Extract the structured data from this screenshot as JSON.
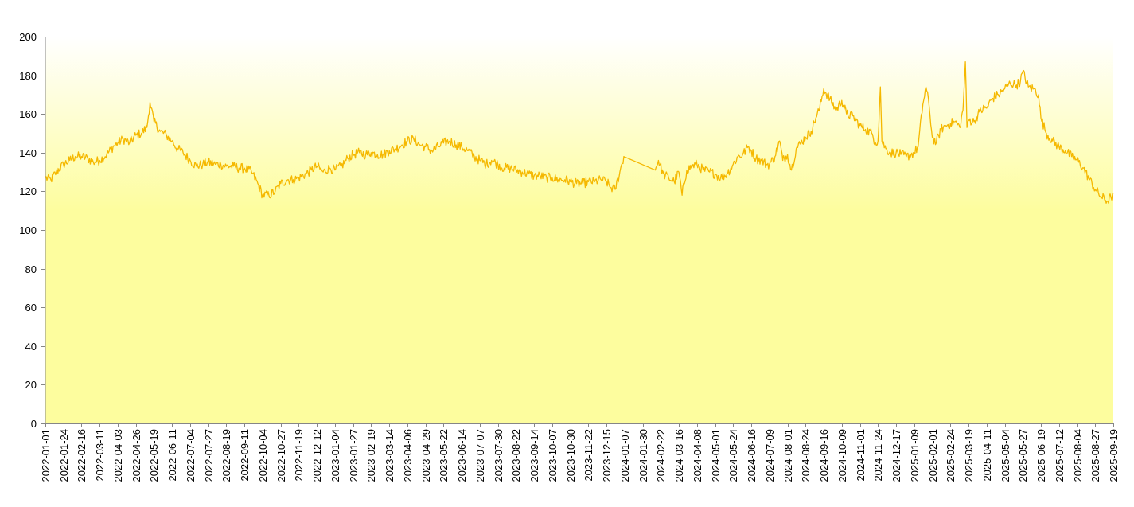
{
  "chart_data": {
    "type": "line",
    "title": "",
    "xlabel": "",
    "ylabel": "",
    "ylim": [
      0,
      200
    ],
    "y_ticks": [
      0,
      20,
      40,
      60,
      80,
      100,
      120,
      140,
      160,
      180,
      200
    ],
    "x_range": [
      "2022-01-01",
      "2025-09-19"
    ],
    "x_tick_labels": [
      "2022-01-01",
      "2022-01-24",
      "2022-02-16",
      "2022-03-11",
      "2022-04-03",
      "2022-04-26",
      "2022-05-19",
      "2022-06-11",
      "2022-07-04",
      "2022-07-27",
      "2022-08-19",
      "2022-09-11",
      "2022-10-04",
      "2022-10-27",
      "2022-11-19",
      "2022-12-12",
      "2023-01-04",
      "2023-01-27",
      "2023-02-19",
      "2023-03-14",
      "2023-04-06",
      "2023-04-29",
      "2023-05-22",
      "2023-06-14",
      "2023-07-07",
      "2023-07-30",
      "2023-08-22",
      "2023-09-14",
      "2023-10-07",
      "2023-10-30",
      "2023-11-22",
      "2023-12-15",
      "2024-01-07",
      "2024-01-30",
      "2024-02-22",
      "2024-03-16",
      "2024-04-08",
      "2024-05-01",
      "2024-05-24",
      "2024-06-16",
      "2024-07-09",
      "2024-08-01",
      "2024-08-24",
      "2024-09-16",
      "2024-10-09",
      "2024-11-01",
      "2024-11-24",
      "2024-12-17",
      "2025-01-09",
      "2025-02-01",
      "2025-02-24",
      "2025-03-19",
      "2025-04-11",
      "2025-05-04",
      "2025-05-27",
      "2025-06-19",
      "2025-07-12",
      "2025-08-04",
      "2025-08-27",
      "2025-09-19"
    ],
    "grid": false,
    "legend": "none",
    "background_gradient": [
      "#ffffff",
      "#fdfd9e"
    ],
    "series": [
      {
        "color": "#f5b800",
        "points": [
          [
            "2022-01-01",
            127
          ],
          [
            "2022-01-08",
            126
          ],
          [
            "2022-01-15",
            130
          ],
          [
            "2022-01-24",
            134
          ],
          [
            "2022-02-01",
            136
          ],
          [
            "2022-02-08",
            138
          ],
          [
            "2022-02-16",
            138
          ],
          [
            "2022-02-24",
            137
          ],
          [
            "2022-03-03",
            135
          ],
          [
            "2022-03-11",
            136
          ],
          [
            "2022-03-20",
            139
          ],
          [
            "2022-03-28",
            143
          ],
          [
            "2022-04-03",
            145
          ],
          [
            "2022-04-10",
            147
          ],
          [
            "2022-04-18",
            145
          ],
          [
            "2022-04-26",
            149
          ],
          [
            "2022-05-03",
            150
          ],
          [
            "2022-05-10",
            153
          ],
          [
            "2022-05-14",
            166
          ],
          [
            "2022-05-19",
            156
          ],
          [
            "2022-05-27",
            151
          ],
          [
            "2022-06-04",
            149
          ],
          [
            "2022-06-11",
            146
          ],
          [
            "2022-06-18",
            142
          ],
          [
            "2022-06-25",
            140
          ],
          [
            "2022-07-04",
            136
          ],
          [
            "2022-07-12",
            133
          ],
          [
            "2022-07-20",
            134
          ],
          [
            "2022-07-27",
            135
          ],
          [
            "2022-08-05",
            134
          ],
          [
            "2022-08-12",
            134
          ],
          [
            "2022-08-19",
            133
          ],
          [
            "2022-08-28",
            133
          ],
          [
            "2022-09-04",
            132
          ],
          [
            "2022-09-11",
            132
          ],
          [
            "2022-09-20",
            130
          ],
          [
            "2022-09-28",
            124
          ],
          [
            "2022-10-04",
            118
          ],
          [
            "2022-10-12",
            118
          ],
          [
            "2022-10-20",
            120
          ],
          [
            "2022-10-27",
            124
          ],
          [
            "2022-11-05",
            126
          ],
          [
            "2022-11-12",
            126
          ],
          [
            "2022-11-19",
            127
          ],
          [
            "2022-11-28",
            129
          ],
          [
            "2022-12-05",
            131
          ],
          [
            "2022-12-12",
            133
          ],
          [
            "2022-12-20",
            130
          ],
          [
            "2022-12-28",
            132
          ],
          [
            "2023-01-04",
            131
          ],
          [
            "2023-01-12",
            133
          ],
          [
            "2023-01-20",
            137
          ],
          [
            "2023-01-27",
            139
          ],
          [
            "2023-02-04",
            140
          ],
          [
            "2023-02-12",
            139
          ],
          [
            "2023-02-19",
            140
          ],
          [
            "2023-02-27",
            139
          ],
          [
            "2023-03-06",
            139
          ],
          [
            "2023-03-14",
            141
          ],
          [
            "2023-03-22",
            142
          ],
          [
            "2023-03-30",
            144
          ],
          [
            "2023-04-06",
            146
          ],
          [
            "2023-04-14",
            147
          ],
          [
            "2023-04-22",
            144
          ],
          [
            "2023-04-29",
            143
          ],
          [
            "2023-05-07",
            141
          ],
          [
            "2023-05-15",
            143
          ],
          [
            "2023-05-22",
            145
          ],
          [
            "2023-05-30",
            146
          ],
          [
            "2023-06-07",
            144
          ],
          [
            "2023-06-14",
            143
          ],
          [
            "2023-06-22",
            141
          ],
          [
            "2023-06-30",
            138
          ],
          [
            "2023-07-07",
            136
          ],
          [
            "2023-07-15",
            134
          ],
          [
            "2023-07-22",
            136
          ],
          [
            "2023-07-30",
            134
          ],
          [
            "2023-08-07",
            132
          ],
          [
            "2023-08-15",
            132
          ],
          [
            "2023-08-22",
            131
          ],
          [
            "2023-08-30",
            130
          ],
          [
            "2023-09-07",
            129
          ],
          [
            "2023-09-14",
            128
          ],
          [
            "2023-09-22",
            128
          ],
          [
            "2023-09-30",
            127
          ],
          [
            "2023-10-07",
            127
          ],
          [
            "2023-10-15",
            126
          ],
          [
            "2023-10-23",
            126
          ],
          [
            "2023-10-30",
            125
          ],
          [
            "2023-11-07",
            124
          ],
          [
            "2023-11-15",
            124
          ],
          [
            "2023-11-22",
            125
          ],
          [
            "2023-11-30",
            125
          ],
          [
            "2023-12-08",
            126
          ],
          [
            "2023-12-15",
            125
          ],
          [
            "2023-12-20",
            122
          ],
          [
            "2023-12-26",
            121
          ],
          [
            "2024-01-01",
            130
          ],
          [
            "2024-01-06",
            138
          ],
          [
            "2024-02-15",
            131
          ],
          [
            "2024-02-19",
            136
          ],
          [
            "2024-02-25",
            129
          ],
          [
            "2024-03-03",
            127
          ],
          [
            "2024-03-10",
            125
          ],
          [
            "2024-03-16",
            130
          ],
          [
            "2024-03-20",
            118
          ],
          [
            "2024-03-26",
            131
          ],
          [
            "2024-04-02",
            133
          ],
          [
            "2024-04-08",
            134
          ],
          [
            "2024-04-16",
            131
          ],
          [
            "2024-04-24",
            130
          ],
          [
            "2024-05-01",
            129
          ],
          [
            "2024-05-08",
            127
          ],
          [
            "2024-05-16",
            129
          ],
          [
            "2024-05-24",
            134
          ],
          [
            "2024-05-30",
            138
          ],
          [
            "2024-06-05",
            139
          ],
          [
            "2024-06-12",
            143
          ],
          [
            "2024-06-16",
            141
          ],
          [
            "2024-06-22",
            137
          ],
          [
            "2024-06-29",
            136
          ],
          [
            "2024-07-05",
            134
          ],
          [
            "2024-07-09",
            134
          ],
          [
            "2024-07-16",
            138
          ],
          [
            "2024-07-22",
            146
          ],
          [
            "2024-07-26",
            136
          ],
          [
            "2024-08-01",
            139
          ],
          [
            "2024-08-06",
            131
          ],
          [
            "2024-08-12",
            142
          ],
          [
            "2024-08-18",
            145
          ],
          [
            "2024-08-24",
            148
          ],
          [
            "2024-08-31",
            151
          ],
          [
            "2024-09-06",
            158
          ],
          [
            "2024-09-11",
            163
          ],
          [
            "2024-09-16",
            173
          ],
          [
            "2024-10-02",
            162
          ],
          [
            "2024-10-09",
            167
          ],
          [
            "2024-10-15",
            160
          ],
          [
            "2024-10-23",
            159
          ],
          [
            "2024-11-01",
            154
          ],
          [
            "2024-11-08",
            152
          ],
          [
            "2024-11-16",
            150
          ],
          [
            "2024-11-21",
            145
          ],
          [
            "2024-11-24",
            146
          ],
          [
            "2024-11-27",
            174
          ],
          [
            "2024-11-29",
            146
          ],
          [
            "2024-12-04",
            142
          ],
          [
            "2024-12-10",
            140
          ],
          [
            "2024-12-17",
            140
          ],
          [
            "2024-12-23",
            139
          ],
          [
            "2024-12-30",
            138
          ],
          [
            "2025-01-05",
            139
          ],
          [
            "2025-01-09",
            140
          ],
          [
            "2025-01-14",
            143
          ],
          [
            "2025-01-20",
            165
          ],
          [
            "2025-01-24",
            174
          ],
          [
            "2025-01-28",
            164
          ],
          [
            "2025-02-01",
            148
          ],
          [
            "2025-02-06",
            145
          ],
          [
            "2025-02-12",
            152
          ],
          [
            "2025-02-18",
            154
          ],
          [
            "2025-02-24",
            155
          ],
          [
            "2025-03-02",
            156
          ],
          [
            "2025-03-08",
            153
          ],
          [
            "2025-03-12",
            162
          ],
          [
            "2025-03-15",
            187
          ],
          [
            "2025-03-17",
            153
          ],
          [
            "2025-03-19",
            157
          ],
          [
            "2025-03-26",
            156
          ],
          [
            "2025-04-02",
            161
          ],
          [
            "2025-04-08",
            163
          ],
          [
            "2025-04-11",
            163
          ],
          [
            "2025-04-18",
            168
          ],
          [
            "2025-04-26",
            170
          ],
          [
            "2025-05-04",
            173
          ],
          [
            "2025-05-11",
            176
          ],
          [
            "2025-05-19",
            175
          ],
          [
            "2025-05-24",
            177
          ],
          [
            "2025-05-27",
            182
          ],
          [
            "2025-06-03",
            174
          ],
          [
            "2025-06-10",
            173
          ],
          [
            "2025-06-16",
            170
          ],
          [
            "2025-06-19",
            158
          ],
          [
            "2025-06-26",
            150
          ],
          [
            "2025-07-04",
            146
          ],
          [
            "2025-07-12",
            143
          ],
          [
            "2025-07-20",
            141
          ],
          [
            "2025-07-28",
            138
          ],
          [
            "2025-08-04",
            136
          ],
          [
            "2025-08-12",
            132
          ],
          [
            "2025-08-20",
            126
          ],
          [
            "2025-08-27",
            121
          ],
          [
            "2025-09-04",
            117
          ],
          [
            "2025-09-12",
            115
          ],
          [
            "2025-09-16",
            117
          ],
          [
            "2025-09-19",
            119
          ]
        ]
      }
    ]
  }
}
